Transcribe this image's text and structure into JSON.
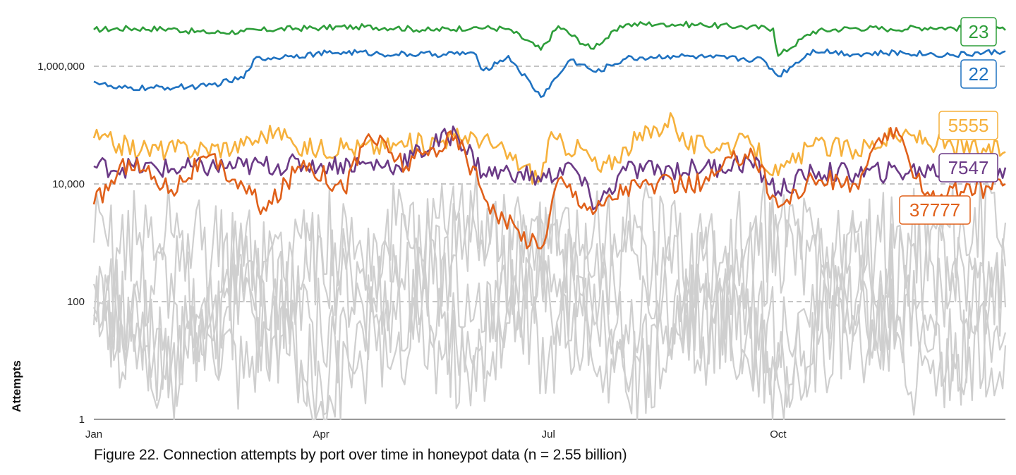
{
  "caption": "Figure 22. Connection attempts by port over time in honeypot data (n = 2.55 billion)",
  "chart_data": {
    "type": "line",
    "title": "",
    "ylabel": "Attempts",
    "xlabel": "",
    "yscale": "log",
    "ylim": [
      1,
      6000000
    ],
    "yticks": [
      {
        "value": 1,
        "label": "1"
      },
      {
        "value": 100,
        "label": "100"
      },
      {
        "value": 10000,
        "label": "10,000"
      },
      {
        "value": 1000000,
        "label": "1,000,000"
      }
    ],
    "xrange": [
      "2024-01-01",
      "2024-12-31"
    ],
    "xticks": [
      {
        "date": "2024-01-01",
        "label": "Jan"
      },
      {
        "date": "2024-04-01",
        "label": "Apr"
      },
      {
        "date": "2024-07-01",
        "label": "Jul"
      },
      {
        "date": "2024-10-01",
        "label": "Oct"
      }
    ],
    "grid": "horizontal-dashed",
    "colors": {
      "grid": "#888888",
      "axis": "#333333",
      "background_series": "#cfcfcf"
    },
    "series": [
      {
        "name": "23",
        "color": "#2e9e3a",
        "points": [
          [
            "2024-01-01",
            4200000
          ],
          [
            "2024-01-15",
            4400000
          ],
          [
            "2024-02-01",
            4300000
          ],
          [
            "2024-02-15",
            3700000
          ],
          [
            "2024-03-01",
            3900000
          ],
          [
            "2024-03-15",
            4300000
          ],
          [
            "2024-04-01",
            4500000
          ],
          [
            "2024-04-15",
            4700000
          ],
          [
            "2024-05-01",
            4500000
          ],
          [
            "2024-05-15",
            4100000
          ],
          [
            "2024-06-01",
            4600000
          ],
          [
            "2024-06-15",
            4300000
          ],
          [
            "2024-06-28",
            1900000
          ],
          [
            "2024-07-05",
            4800000
          ],
          [
            "2024-07-18",
            2000000
          ],
          [
            "2024-08-01",
            5100000
          ],
          [
            "2024-08-15",
            5300000
          ],
          [
            "2024-09-01",
            5000000
          ],
          [
            "2024-09-15",
            4700000
          ],
          [
            "2024-09-29",
            4400000
          ],
          [
            "2024-10-01",
            1500000
          ],
          [
            "2024-10-15",
            3900000
          ],
          [
            "2024-11-01",
            4500000
          ],
          [
            "2024-11-15",
            4300000
          ],
          [
            "2024-12-01",
            4600000
          ],
          [
            "2024-12-15",
            4400000
          ],
          [
            "2024-12-31",
            4100000
          ]
        ]
      },
      {
        "name": "22",
        "color": "#1f72c1",
        "points": [
          [
            "2024-01-01",
            550000
          ],
          [
            "2024-01-10",
            420000
          ],
          [
            "2024-01-25",
            430000
          ],
          [
            "2024-02-15",
            460000
          ],
          [
            "2024-03-01",
            630000
          ],
          [
            "2024-03-05",
            1300000
          ],
          [
            "2024-03-20",
            1500000
          ],
          [
            "2024-04-10",
            1750000
          ],
          [
            "2024-05-01",
            1600000
          ],
          [
            "2024-05-20",
            1600000
          ],
          [
            "2024-06-01",
            1700000
          ],
          [
            "2024-06-05",
            850000
          ],
          [
            "2024-06-15",
            1500000
          ],
          [
            "2024-06-28",
            300000
          ],
          [
            "2024-07-10",
            1300000
          ],
          [
            "2024-07-20",
            800000
          ],
          [
            "2024-08-01",
            1350000
          ],
          [
            "2024-08-20",
            1500000
          ],
          [
            "2024-09-05",
            1400000
          ],
          [
            "2024-09-25",
            1300000
          ],
          [
            "2024-10-01",
            680000
          ],
          [
            "2024-10-15",
            1900000
          ],
          [
            "2024-11-01",
            1600000
          ],
          [
            "2024-11-20",
            1700000
          ],
          [
            "2024-12-10",
            1550000
          ],
          [
            "2024-12-31",
            1800000
          ]
        ]
      },
      {
        "name": "5555",
        "color": "#f6b13c",
        "points": [
          [
            "2024-01-01",
            60000
          ],
          [
            "2024-01-20",
            38000
          ],
          [
            "2024-02-15",
            40000
          ],
          [
            "2024-03-01",
            45000
          ],
          [
            "2024-03-15",
            90000
          ],
          [
            "2024-03-22",
            42000
          ],
          [
            "2024-04-10",
            40000
          ],
          [
            "2024-05-01",
            45000
          ],
          [
            "2024-05-20",
            55000
          ],
          [
            "2024-06-01",
            70000
          ],
          [
            "2024-06-10",
            42000
          ],
          [
            "2024-06-28",
            12000
          ],
          [
            "2024-07-01",
            55000
          ],
          [
            "2024-07-15",
            38000
          ],
          [
            "2024-07-22",
            16000
          ],
          [
            "2024-08-01",
            42000
          ],
          [
            "2024-08-20",
            130000
          ],
          [
            "2024-08-25",
            45000
          ],
          [
            "2024-09-20",
            48000
          ],
          [
            "2024-10-01",
            14000
          ],
          [
            "2024-10-15",
            45000
          ],
          [
            "2024-11-01",
            38000
          ],
          [
            "2024-11-20",
            70000
          ],
          [
            "2024-12-10",
            42000
          ],
          [
            "2024-12-31",
            35000
          ]
        ]
      },
      {
        "name": "7547",
        "color": "#6b3a86",
        "points": [
          [
            "2024-01-01",
            20000
          ],
          [
            "2024-02-01",
            18000
          ],
          [
            "2024-03-01",
            20000
          ],
          [
            "2024-04-01",
            22000
          ],
          [
            "2024-05-01",
            21000
          ],
          [
            "2024-05-25",
            75000
          ],
          [
            "2024-06-05",
            15000
          ],
          [
            "2024-06-20",
            16000
          ],
          [
            "2024-06-28",
            11000
          ],
          [
            "2024-07-10",
            22000
          ],
          [
            "2024-07-20",
            4000
          ],
          [
            "2024-08-01",
            17000
          ],
          [
            "2024-09-01",
            18000
          ],
          [
            "2024-09-20",
            24000
          ],
          [
            "2024-10-01",
            7500
          ],
          [
            "2024-10-15",
            16000
          ],
          [
            "2024-11-01",
            15000
          ],
          [
            "2024-12-01",
            17000
          ],
          [
            "2024-12-31",
            19000
          ]
        ]
      },
      {
        "name": "37777",
        "color": "#e0601a",
        "points": [
          [
            "2024-01-01",
            4500
          ],
          [
            "2024-01-15",
            25000
          ],
          [
            "2024-02-01",
            8000
          ],
          [
            "2024-02-15",
            28000
          ],
          [
            "2024-03-01",
            9000
          ],
          [
            "2024-03-10",
            3500
          ],
          [
            "2024-03-25",
            25000
          ],
          [
            "2024-04-10",
            8000
          ],
          [
            "2024-04-20",
            70000
          ],
          [
            "2024-05-05",
            20000
          ],
          [
            "2024-05-25",
            65000
          ],
          [
            "2024-06-10",
            3000
          ],
          [
            "2024-06-28",
            800
          ],
          [
            "2024-07-05",
            12000
          ],
          [
            "2024-07-20",
            3500
          ],
          [
            "2024-08-01",
            9000
          ],
          [
            "2024-09-01",
            10000
          ],
          [
            "2024-09-20",
            40000
          ],
          [
            "2024-10-01",
            4000
          ],
          [
            "2024-10-15",
            12000
          ],
          [
            "2024-11-01",
            10000
          ],
          [
            "2024-11-15",
            90000
          ],
          [
            "2024-12-01",
            6000
          ],
          [
            "2024-12-31",
            10000
          ]
        ]
      },
      {
        "name": "",
        "color": "#cfcfcf",
        "role": "other-ports",
        "points": [
          [
            "2024-01-01",
            200
          ],
          [
            "2024-02-01",
            8
          ],
          [
            "2024-03-01",
            600
          ],
          [
            "2024-04-01",
            30
          ],
          [
            "2024-05-01",
            2000
          ],
          [
            "2024-06-01",
            50
          ],
          [
            "2024-07-01",
            3000
          ],
          [
            "2024-08-01",
            40
          ],
          [
            "2024-09-01",
            800
          ],
          [
            "2024-10-01",
            20
          ],
          [
            "2024-11-01",
            1500
          ],
          [
            "2024-12-01",
            60
          ],
          [
            "2024-12-31",
            400
          ]
        ]
      },
      {
        "name": "",
        "color": "#cfcfcf",
        "role": "other-ports",
        "points": [
          [
            "2024-01-01",
            40
          ],
          [
            "2024-02-01",
            300
          ],
          [
            "2024-03-01",
            5
          ],
          [
            "2024-04-01",
            900
          ],
          [
            "2024-05-01",
            15
          ],
          [
            "2024-06-01",
            4000
          ],
          [
            "2024-07-01",
            10
          ],
          [
            "2024-08-01",
            700
          ],
          [
            "2024-09-01",
            25
          ],
          [
            "2024-10-01",
            1200
          ],
          [
            "2024-11-01",
            30
          ],
          [
            "2024-12-01",
            500
          ],
          [
            "2024-12-31",
            80
          ]
        ]
      },
      {
        "name": "",
        "color": "#cfcfcf",
        "role": "other-ports",
        "points": [
          [
            "2024-01-01",
            80
          ],
          [
            "2024-02-01",
            20
          ],
          [
            "2024-03-01",
            150
          ],
          [
            "2024-04-01",
            4
          ],
          [
            "2024-05-01",
            300
          ],
          [
            "2024-06-01",
            12
          ],
          [
            "2024-07-01",
            600
          ],
          [
            "2024-08-01",
            5
          ],
          [
            "2024-09-01",
            200
          ],
          [
            "2024-10-01",
            8
          ],
          [
            "2024-11-01",
            100
          ],
          [
            "2024-12-01",
            15
          ],
          [
            "2024-12-31",
            18
          ]
        ]
      },
      {
        "name": "",
        "color": "#cfcfcf",
        "role": "other-ports",
        "points": [
          [
            "2024-01-01",
            1000
          ],
          [
            "2024-02-01",
            1500
          ],
          [
            "2024-03-01",
            400
          ],
          [
            "2024-04-01",
            1200
          ],
          [
            "2024-05-01",
            600
          ],
          [
            "2024-06-01",
            2500
          ],
          [
            "2024-07-01",
            800
          ],
          [
            "2024-08-01",
            1800
          ],
          [
            "2024-09-01",
            500
          ],
          [
            "2024-10-01",
            2000
          ],
          [
            "2024-11-01",
            700
          ],
          [
            "2024-12-01",
            1600
          ],
          [
            "2024-12-31",
            2200
          ]
        ]
      },
      {
        "name": "",
        "color": "#cfcfcf",
        "role": "other-ports",
        "points": [
          [
            "2024-01-01",
            60
          ],
          [
            "2024-02-01",
            5
          ],
          [
            "2024-03-01",
            100
          ],
          [
            "2024-04-01",
            2
          ],
          [
            "2024-05-01",
            50
          ],
          [
            "2024-06-01",
            8
          ],
          [
            "2024-07-01",
            200
          ],
          [
            "2024-08-01",
            3
          ],
          [
            "2024-09-01",
            80
          ],
          [
            "2024-10-01",
            4
          ],
          [
            "2024-11-01",
            40
          ],
          [
            "2024-12-01",
            6
          ],
          [
            "2024-12-31",
            30
          ]
        ]
      }
    ]
  }
}
